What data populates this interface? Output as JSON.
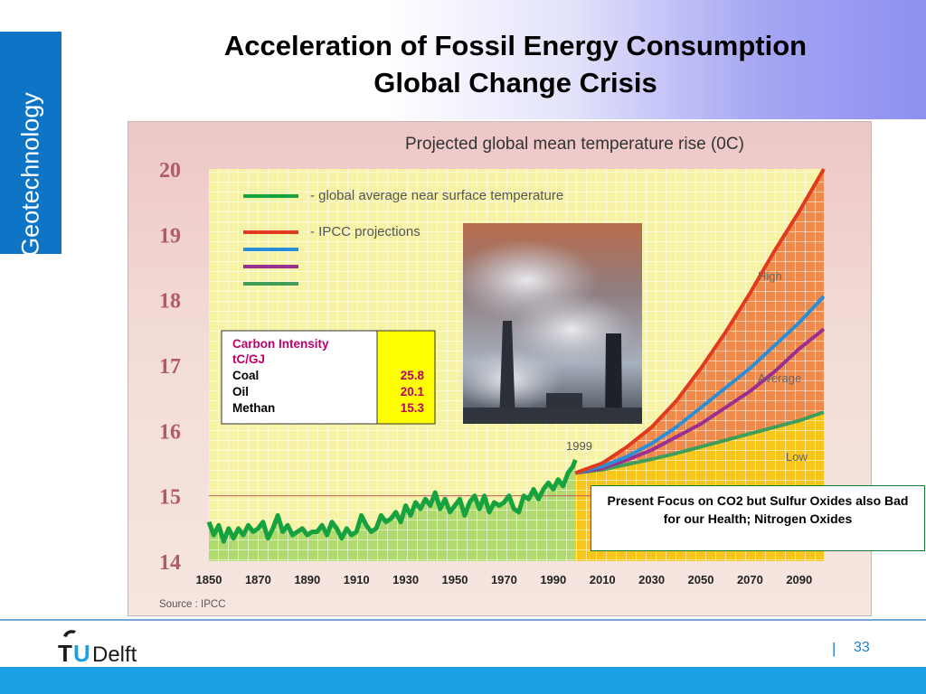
{
  "slide": {
    "side_tab": "Geotechnology",
    "title_line1": "Acceleration of Fossil Energy Consumption",
    "title_line2": "Global Change Crisis",
    "page_separator": "|",
    "page_number": "33",
    "logo_text_t": "T",
    "logo_text_u": "U",
    "logo_text_delft": "Delft"
  },
  "callout": {
    "text": "Present Focus on CO2 but Sulfur Oxides also Bad for our Health; Nitrogen Oxides"
  },
  "colors": {
    "side_tab": "#0e75c6",
    "footer_band": "#1ea1e4",
    "observed": "#16a23e",
    "high": "#e03b1f",
    "upper_mid": "#2c8fd6",
    "lower_mid": "#9b2f8f",
    "low": "#3e9e5a"
  },
  "chart_data": {
    "type": "line",
    "title": "Projected global mean temperature rise (0C)",
    "source": "Source : IPCC",
    "xlim": [
      1850,
      2100
    ],
    "ylim": [
      14,
      20
    ],
    "x_ticks": [
      1850,
      1870,
      1890,
      1910,
      1930,
      1950,
      1970,
      1990,
      2010,
      2030,
      2050,
      2070,
      2090
    ],
    "y_ticks": [
      14,
      15,
      16,
      17,
      18,
      19,
      20
    ],
    "legend": [
      {
        "text": "- global average near surface temperature",
        "color": "#16a23e"
      },
      {
        "text": "- IPCC projections",
        "color": "#e03b1f"
      }
    ],
    "annotations": {
      "year_marker": "1999",
      "high": "High",
      "average": "Average",
      "low": "Low"
    },
    "observed": {
      "x": [
        1850,
        1852,
        1854,
        1856,
        1858,
        1860,
        1862,
        1864,
        1866,
        1868,
        1870,
        1872,
        1874,
        1876,
        1878,
        1880,
        1882,
        1884,
        1886,
        1888,
        1890,
        1892,
        1894,
        1896,
        1898,
        1900,
        1902,
        1904,
        1906,
        1908,
        1910,
        1912,
        1914,
        1916,
        1918,
        1920,
        1922,
        1924,
        1926,
        1928,
        1930,
        1932,
        1934,
        1936,
        1938,
        1940,
        1942,
        1944,
        1946,
        1948,
        1950,
        1952,
        1954,
        1956,
        1958,
        1960,
        1962,
        1964,
        1966,
        1968,
        1970,
        1972,
        1974,
        1976,
        1978,
        1980,
        1982,
        1984,
        1986,
        1988,
        1990,
        1992,
        1994,
        1996,
        1998,
        1999
      ],
      "y": [
        14.6,
        14.4,
        14.55,
        14.3,
        14.5,
        14.35,
        14.5,
        14.4,
        14.55,
        14.45,
        14.5,
        14.6,
        14.35,
        14.5,
        14.7,
        14.45,
        14.55,
        14.4,
        14.45,
        14.5,
        14.4,
        14.45,
        14.45,
        14.55,
        14.4,
        14.6,
        14.5,
        14.35,
        14.5,
        14.4,
        14.45,
        14.7,
        14.55,
        14.45,
        14.5,
        14.7,
        14.6,
        14.65,
        14.75,
        14.6,
        14.85,
        14.7,
        14.9,
        14.8,
        14.95,
        14.85,
        15.05,
        14.8,
        14.95,
        14.75,
        14.85,
        14.95,
        14.7,
        14.9,
        15.0,
        14.8,
        15.0,
        14.75,
        14.9,
        14.85,
        14.9,
        15.0,
        14.8,
        14.75,
        15.0,
        14.95,
        15.1,
        14.95,
        15.1,
        15.2,
        15.1,
        15.25,
        15.15,
        15.35,
        15.45,
        15.55
      ]
    },
    "projections": [
      {
        "name": "High",
        "color": "#e03b1f",
        "x": [
          1999,
          2010,
          2020,
          2030,
          2040,
          2050,
          2060,
          2070,
          2080,
          2090,
          2100
        ],
        "y": [
          15.35,
          15.5,
          15.75,
          16.05,
          16.45,
          16.95,
          17.5,
          18.1,
          18.75,
          19.35,
          20.0
        ]
      },
      {
        "name": "",
        "color": "#2c8fd6",
        "x": [
          1999,
          2010,
          2020,
          2030,
          2040,
          2050,
          2060,
          2070,
          2080,
          2090,
          2100
        ],
        "y": [
          15.35,
          15.45,
          15.6,
          15.8,
          16.05,
          16.35,
          16.65,
          16.95,
          17.3,
          17.65,
          18.05
        ]
      },
      {
        "name": "Average",
        "color": "#9b2f8f",
        "x": [
          1999,
          2010,
          2020,
          2030,
          2040,
          2050,
          2060,
          2070,
          2080,
          2090,
          2100
        ],
        "y": [
          15.35,
          15.42,
          15.55,
          15.7,
          15.9,
          16.1,
          16.35,
          16.6,
          16.9,
          17.25,
          17.55
        ]
      },
      {
        "name": "Low",
        "color": "#3e9e5a",
        "x": [
          1999,
          2010,
          2020,
          2030,
          2040,
          2050,
          2060,
          2070,
          2080,
          2090,
          2100
        ],
        "y": [
          15.35,
          15.4,
          15.48,
          15.56,
          15.65,
          15.75,
          15.85,
          15.95,
          16.05,
          16.15,
          16.28
        ]
      }
    ],
    "intensity_table": {
      "header1": "Carbon Intensity",
      "header2": "tC/GJ",
      "rows": [
        {
          "label": "Coal",
          "value": "25.8"
        },
        {
          "label": "Oil",
          "value": "20.1"
        },
        {
          "label": "Methan",
          "value": "15.3"
        }
      ]
    }
  }
}
